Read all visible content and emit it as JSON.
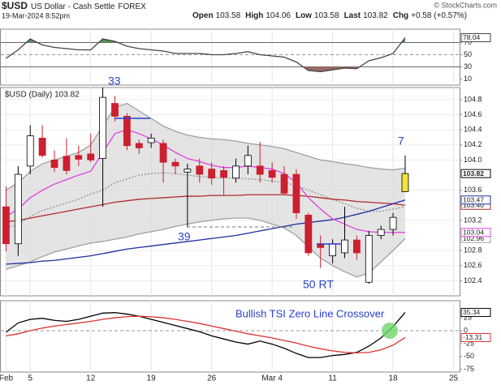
{
  "header": {
    "symbol": "$USD",
    "name": "US Dollar - Cash Settle",
    "exchange": "FOREX",
    "date": "19-Mar-2024 8:52pm",
    "quote": [
      {
        "label": "Open",
        "value": 103.58
      },
      {
        "label": "High",
        "value": 104.06
      },
      {
        "label": "Low",
        "value": 103.58
      },
      {
        "label": "Last",
        "value": 103.82
      },
      {
        "label": "Chg",
        "value": "+0.58 (+0.57%)"
      }
    ],
    "source": "© StockCharts.com"
  },
  "chart_data": [
    {
      "type": "line",
      "ylim": [
        0,
        92
      ],
      "yticks": [
        10,
        30,
        50,
        70
      ],
      "grid": false,
      "ref_lines": [
        {
          "value": 70,
          "dash": false
        },
        {
          "value": 50,
          "dash": true
        },
        {
          "value": 30,
          "dash": false
        }
      ],
      "fills": [
        {
          "level": 70,
          "side": "above",
          "color": "#5c8f5c"
        },
        {
          "level": 30,
          "side": "below",
          "color": "#9a6a62"
        }
      ],
      "series": [
        {
          "color": "#444444",
          "end_label": true,
          "values": [
            44,
            58,
            76,
            66,
            62,
            60,
            58,
            58,
            76,
            72,
            64,
            60,
            58,
            56,
            52,
            52,
            52,
            50,
            50,
            52,
            55,
            50,
            48,
            46,
            38,
            24,
            22,
            25,
            28,
            27,
            40,
            45,
            52,
            78.04,
            null,
            null,
            null,
            null
          ]
        }
      ]
    },
    {
      "type": "candlestick",
      "legend": "$USD (Daily) 103.82",
      "ylim": [
        102.2,
        104.96
      ],
      "yticks": [
        104.8,
        104.6,
        104.4,
        104.2,
        {
          "value": 104,
          "label": "104.0"
        },
        103.6,
        103.2,
        102.8,
        102.6,
        102.4
      ],
      "grid": true,
      "annotations": [
        "33",
        "39",
        "50 RT",
        "7"
      ],
      "up_color": "#ffffff",
      "down_color": "#cc1f2f",
      "highlight_color": "#f2e23a",
      "band_color": "#d8d8d8",
      "label_last_close": true,
      "open": [
        103.38,
        102.89,
        103.92,
        104.29,
        104.0,
        104.05,
        104.06,
        104.08,
        104.02,
        104.75,
        104.58,
        104.22,
        104.23,
        104.22,
        103.97,
        103.84,
        103.92,
        103.88,
        103.86,
        103.76,
        103.92,
        103.92,
        103.86,
        103.81,
        103.81,
        103.27,
        102.89,
        102.73,
        102.77,
        102.94,
        102.38,
        103.0,
        103.08,
        103.58,
        null,
        null,
        null,
        null
      ],
      "high": [
        103.65,
        103.92,
        104.46,
        104.46,
        104.13,
        104.29,
        104.19,
        104.35,
        104.96,
        104.85,
        104.62,
        104.27,
        104.35,
        104.27,
        104.02,
        103.95,
        104.02,
        103.97,
        103.92,
        104.02,
        104.19,
        104.24,
        103.97,
        103.92,
        103.88,
        103.3,
        103.0,
        102.95,
        103.38,
        103.0,
        103.06,
        103.13,
        103.3,
        104.06,
        null,
        null,
        null,
        null
      ],
      "low": [
        102.79,
        102.73,
        103.81,
        104.03,
        103.84,
        103.81,
        103.92,
        103.97,
        103.38,
        104.51,
        104.13,
        104.08,
        104.16,
        103.7,
        103.81,
        103.11,
        103.7,
        103.67,
        103.54,
        103.7,
        103.81,
        103.7,
        103.7,
        103.54,
        103.22,
        102.73,
        102.57,
        102.63,
        102.7,
        102.68,
        102.36,
        102.95,
        103.0,
        103.58,
        null,
        null,
        null,
        null
      ],
      "close": [
        102.89,
        103.81,
        104.32,
        104.06,
        103.9,
        103.86,
        104.01,
        104.0,
        104.83,
        104.58,
        104.19,
        104.16,
        104.29,
        103.97,
        103.92,
        103.88,
        103.81,
        103.76,
        103.77,
        103.92,
        104.06,
        103.81,
        103.77,
        103.56,
        103.3,
        102.77,
        102.84,
        102.89,
        102.94,
        102.77,
        103.0,
        103.08,
        103.24,
        103.82,
        null,
        null,
        null,
        null
      ],
      "series": [
        {
          "color": "#a0a0a0",
          "values": [
            103.6,
            103.7,
            103.85,
            103.95,
            104.0,
            104.05,
            104.1,
            104.2,
            104.45,
            104.7,
            104.75,
            104.65,
            104.55,
            104.45,
            104.38,
            104.33,
            104.3,
            104.28,
            104.27,
            104.25,
            104.22,
            104.2,
            104.18,
            104.15,
            104.1,
            104.05,
            104.0,
            103.98,
            103.95,
            103.93,
            103.9,
            103.88,
            103.87,
            103.89,
            null,
            null,
            null,
            null
          ]
        },
        {
          "color": "#a0a0a0",
          "end_label": true,
          "values": [
            102.55,
            102.6,
            102.65,
            102.72,
            102.78,
            102.82,
            102.86,
            102.9,
            102.92,
            102.95,
            102.98,
            103.02,
            103.05,
            103.08,
            103.12,
            103.15,
            103.18,
            103.2,
            103.22,
            103.23,
            103.23,
            103.2,
            103.15,
            103.1,
            103.0,
            102.85,
            102.7,
            102.6,
            102.52,
            102.45,
            102.5,
            102.65,
            102.8,
            102.96,
            null,
            null,
            null,
            null
          ]
        },
        {
          "color": "#909090",
          "dash": "2,2",
          "values": [
            103.1,
            103.15,
            103.25,
            103.33,
            103.38,
            103.43,
            103.48,
            103.55,
            103.6,
            103.7,
            103.75,
            103.8,
            103.82,
            103.83,
            103.82,
            103.8,
            103.78,
            103.77,
            103.76,
            103.76,
            103.75,
            103.74,
            103.72,
            103.7,
            103.66,
            103.6,
            103.54,
            103.48,
            103.42,
            103.36,
            103.32,
            103.32,
            103.35,
            103.38,
            null,
            null,
            null,
            null
          ]
        },
        {
          "color": "#b22a2a",
          "end_label": "103.40",
          "values": [
            103.18,
            103.2,
            103.23,
            103.26,
            103.29,
            103.32,
            103.35,
            103.38,
            103.41,
            103.44,
            103.46,
            103.48,
            103.49,
            103.5,
            103.51,
            103.52,
            103.52,
            103.53,
            103.53,
            103.53,
            103.54,
            103.54,
            103.54,
            103.54,
            103.53,
            103.52,
            103.5,
            103.48,
            103.47,
            103.45,
            103.44,
            103.43,
            103.42,
            103.4,
            null,
            null,
            null,
            null
          ]
        },
        {
          "color": "#1f2fa0",
          "end_label": true,
          "values": [
            102.62,
            102.63,
            102.64,
            102.66,
            102.67,
            102.69,
            102.71,
            102.73,
            102.76,
            102.79,
            102.82,
            102.84,
            102.86,
            102.88,
            102.9,
            102.92,
            102.94,
            102.96,
            102.98,
            103.0,
            103.03,
            103.06,
            103.09,
            103.12,
            103.15,
            103.17,
            103.19,
            103.21,
            103.24,
            103.28,
            103.32,
            103.37,
            103.42,
            103.47,
            null,
            null,
            null,
            null
          ]
        },
        {
          "color": "#e040e0",
          "end_label": true,
          "values": [
            103.25,
            103.35,
            103.5,
            103.6,
            103.68,
            103.74,
            103.8,
            103.85,
            104.1,
            104.35,
            104.4,
            104.35,
            104.28,
            104.2,
            104.1,
            104.02,
            103.98,
            103.93,
            103.9,
            103.9,
            103.92,
            103.9,
            103.88,
            103.82,
            103.7,
            103.5,
            103.35,
            103.22,
            103.15,
            103.08,
            103.05,
            103.04,
            103.04,
            103.04,
            null,
            null,
            null,
            null
          ]
        }
      ]
    },
    {
      "type": "line",
      "ylim": [
        -80,
        58
      ],
      "yticks": [
        25,
        0,
        -25,
        -50,
        -75
      ],
      "grid": false,
      "ref_lines": [
        {
          "value": 0,
          "dash": true
        }
      ],
      "annotations": [
        "Bullish TSI Zero Line Crossover"
      ],
      "categories": [
        "Feb",
        null,
        "5",
        null,
        null,
        null,
        null,
        "12",
        null,
        null,
        null,
        null,
        "19",
        null,
        null,
        null,
        null,
        "26",
        null,
        null,
        null,
        null,
        "Mar 4",
        null,
        null,
        null,
        null,
        "11",
        null,
        null,
        null,
        null,
        "18",
        null,
        null,
        null,
        null,
        "25"
      ],
      "series": [
        {
          "color": "#000000",
          "end_label": true,
          "values": [
            -3,
            15,
            22,
            24,
            20,
            18,
            22,
            28,
            34,
            35,
            32,
            28,
            22,
            16,
            10,
            4,
            -2,
            -10,
            -16,
            -22,
            -26,
            -20,
            -26,
            -34,
            -44,
            -52,
            -52,
            -48,
            -46,
            -42,
            -30,
            -14,
            8,
            35.34,
            null,
            null,
            null,
            null
          ]
        },
        {
          "color": "#e03030",
          "end_label": true,
          "values": [
            -10,
            -6,
            0,
            5,
            9,
            12,
            15,
            18,
            22,
            25,
            27,
            28,
            27,
            25,
            22,
            18,
            14,
            9,
            4,
            -1,
            -6,
            -10,
            -14,
            -19,
            -24,
            -30,
            -35,
            -39,
            -42,
            -43,
            -42,
            -37,
            -28,
            -13.31,
            null,
            null,
            null,
            null
          ]
        }
      ]
    }
  ]
}
